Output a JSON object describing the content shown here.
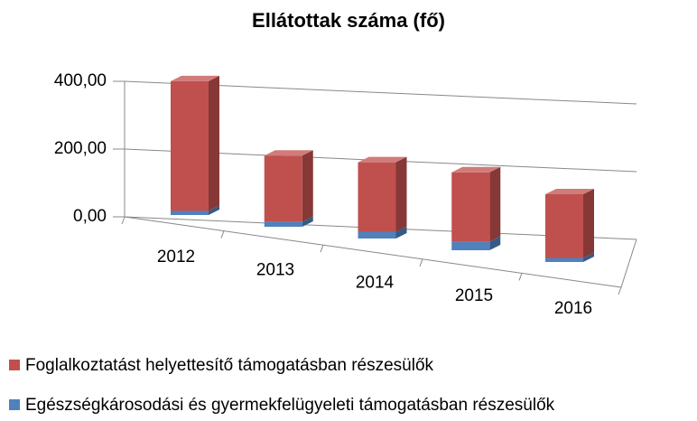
{
  "chart_data": {
    "type": "bar3d_stacked",
    "title": "Ellátottak száma (fő)",
    "categories": [
      "2012",
      "2013",
      "2014",
      "2015",
      "2016"
    ],
    "series": [
      {
        "name": "Foglalkoztatást helyettesítő támogatásban részesülők",
        "color": "#c0504d",
        "values": [
          383,
          195,
          205,
          205,
          188
        ]
      },
      {
        "name": "Egészségkárosodási és gyermekfelügyeleti támogatásban részesülők",
        "color": "#4f81bd",
        "values": [
          12,
          15,
          20,
          25,
          12
        ]
      }
    ],
    "ylim": [
      0,
      400
    ],
    "yticks": [
      {
        "value": 0,
        "label": "0,00"
      },
      {
        "value": 200,
        "label": "200,00"
      },
      {
        "value": 400,
        "label": "400,00"
      }
    ],
    "grid": true,
    "legend": "bottom"
  }
}
